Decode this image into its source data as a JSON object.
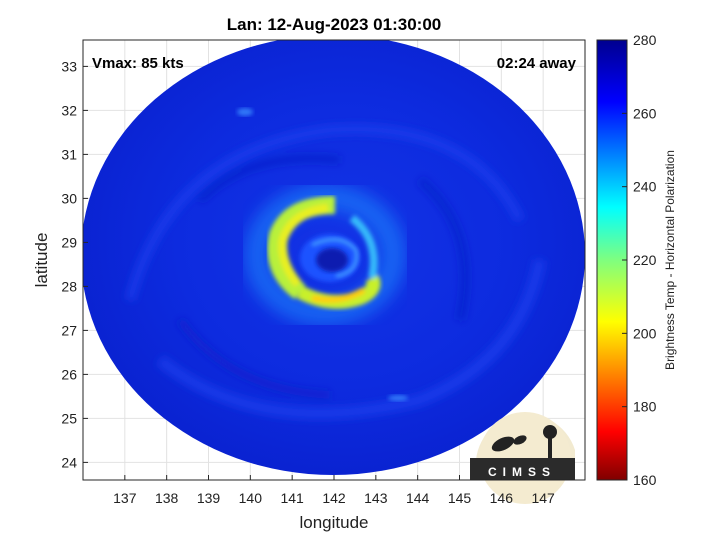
{
  "title": "Lan: 12-Aug-2023 01:30:00",
  "vmax_label": "Vmax: 85 kts",
  "time_away_label": "02:24 away",
  "x_axis": {
    "label": "longitude",
    "ticks": [
      "137",
      "138",
      "139",
      "140",
      "141",
      "142",
      "143",
      "144",
      "145",
      "146",
      "147"
    ],
    "range": [
      136,
      148
    ]
  },
  "y_axis": {
    "label": "latitude",
    "ticks": [
      "24",
      "25",
      "26",
      "27",
      "28",
      "29",
      "30",
      "31",
      "32",
      "33"
    ],
    "range": [
      23.6,
      33.6
    ]
  },
  "colorbar": {
    "label": "Brightness Temp - Horizontal Polarization",
    "ticks": [
      "160",
      "180",
      "200",
      "220",
      "240",
      "260",
      "280"
    ],
    "range": [
      160,
      280
    ]
  },
  "logo_text": "CIMSS",
  "grid": true,
  "storm_center": {
    "lon": 141.8,
    "lat": 28.5
  },
  "colors": {
    "background_deep_blue": "#0b22d9",
    "warm_band_yellow": "#e8ef22",
    "colormap": "jet"
  }
}
